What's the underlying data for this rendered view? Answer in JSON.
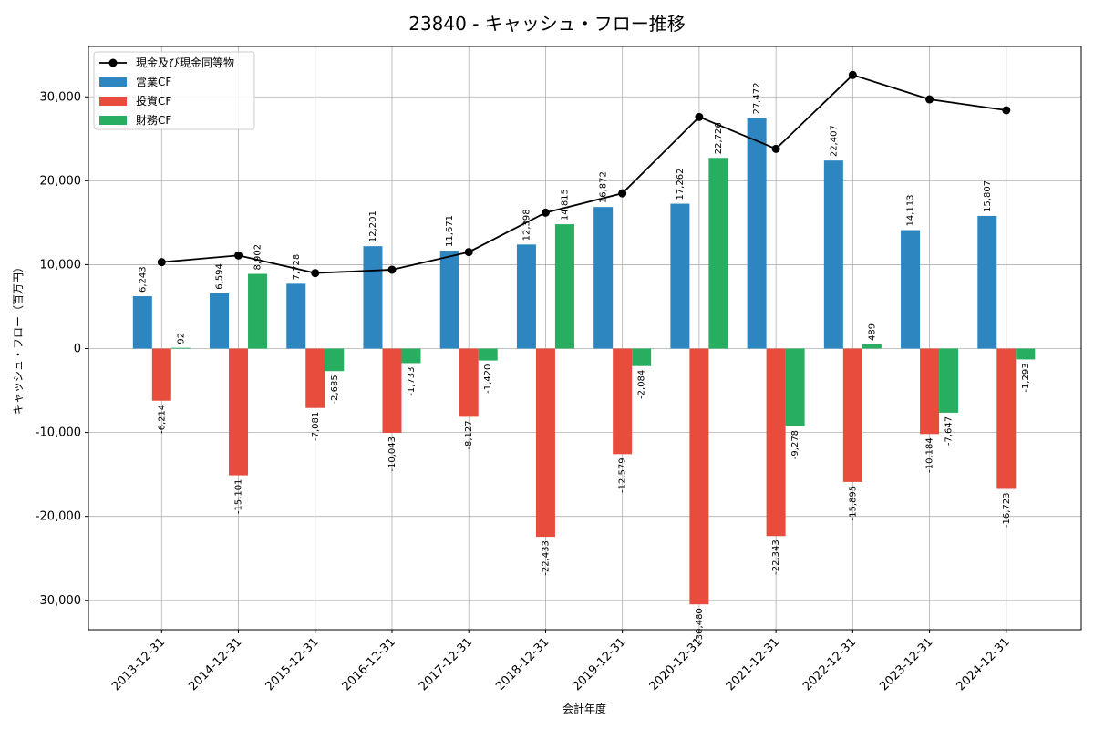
{
  "chart_data": {
    "type": "bar",
    "title": "23840 - キャッシュ・フロー推移",
    "xlabel": "会計年度",
    "ylabel": "キャッシュ・フロー（百万円）",
    "ylim": [
      -33500,
      36000
    ],
    "yticks": [
      -30000,
      -20000,
      -10000,
      0,
      10000,
      20000,
      30000
    ],
    "ytick_labels": [
      "-30,000",
      "-20,000",
      "-10,000",
      "0",
      "10,000",
      "20,000",
      "30,000"
    ],
    "grid": true,
    "legend_position": "top-left",
    "categories": [
      "2013-12-31",
      "2014-12-31",
      "2015-12-31",
      "2016-12-31",
      "2017-12-31",
      "2018-12-31",
      "2019-12-31",
      "2020-12-31",
      "2021-12-31",
      "2022-12-31",
      "2023-12-31",
      "2024-12-31"
    ],
    "series": [
      {
        "name": "営業CF",
        "kind": "bar",
        "color": "#2e86c1",
        "values": [
          6243,
          6594,
          7728,
          12201,
          11671,
          12398,
          16872,
          17262,
          27472,
          22407,
          14113,
          15807
        ],
        "labels": [
          "6,243",
          "6,594",
          "7,728",
          "12,201",
          "11,671",
          "12,398",
          "16,872",
          "17,262",
          "27,472",
          "22,407",
          "14,113",
          "15,807"
        ]
      },
      {
        "name": "投資CF",
        "kind": "bar",
        "color": "#e74c3c",
        "values": [
          -6214,
          -15101,
          -7081,
          -10043,
          -8127,
          -22433,
          -12579,
          -30480,
          -22343,
          -15895,
          -10184,
          -16723
        ],
        "labels": [
          "-6,214",
          "-15,101",
          "-7,081",
          "-10,043",
          "-8,127",
          "-22,433",
          "-12,579",
          "-30,480",
          "-22,343",
          "-15,895",
          "-10,184",
          "-16,723"
        ]
      },
      {
        "name": "財務CF",
        "kind": "bar",
        "color": "#27ae60",
        "values": [
          92,
          8902,
          -2685,
          -1733,
          -1420,
          14815,
          -2084,
          22726,
          -9278,
          489,
          -7647,
          -1293
        ],
        "labels": [
          "92",
          "8,902",
          "-2,685",
          "-1,733",
          "-1,420",
          "14,815",
          "-2,084",
          "22,726",
          "-9,278",
          "489",
          "-7,647",
          "-1,293"
        ]
      },
      {
        "name": "現金及び現金同等物",
        "kind": "line",
        "color": "#000000",
        "values": [
          10300,
          11100,
          9000,
          9400,
          11500,
          16200,
          18500,
          27600,
          23800,
          32600,
          29700,
          28400
        ]
      }
    ]
  }
}
